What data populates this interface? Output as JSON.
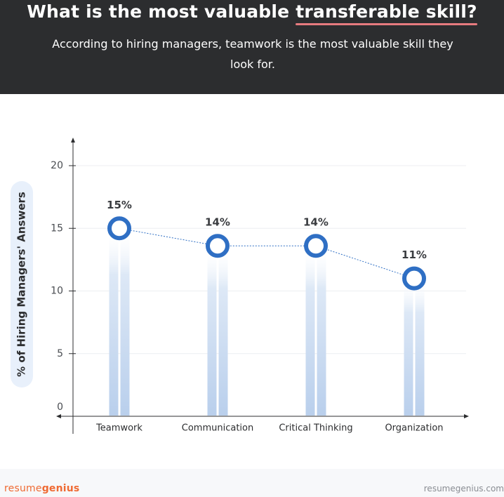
{
  "header": {
    "title_prefix": "What is the most valuable ",
    "title_highlight": "transferable skill?",
    "subtitle": "According to hiring managers, teamwork is the most valuable skill they look for."
  },
  "colors": {
    "header_bg": "#2c2d2f",
    "underline": "#e77b7f",
    "marker": "#2f6fc4",
    "bar": "#c9dbf0",
    "brand": "#ef6a33"
  },
  "chart_data": {
    "type": "line",
    "categories": [
      "Teamwork",
      "Communication",
      "Critical Thinking",
      "Organization"
    ],
    "values": [
      15,
      13.6,
      13.6,
      11
    ],
    "data_labels": [
      "15%",
      "14%",
      "14%",
      "11%"
    ],
    "ylabel": "% of Hiring Managers' Answers",
    "ylim": [
      0,
      20
    ],
    "yticks": [
      "0",
      "5",
      "10",
      "15",
      "20"
    ],
    "grid": true
  },
  "footer": {
    "brand_prefix": "resume",
    "brand_bold": "genius",
    "domain": "resumegenius.com"
  }
}
